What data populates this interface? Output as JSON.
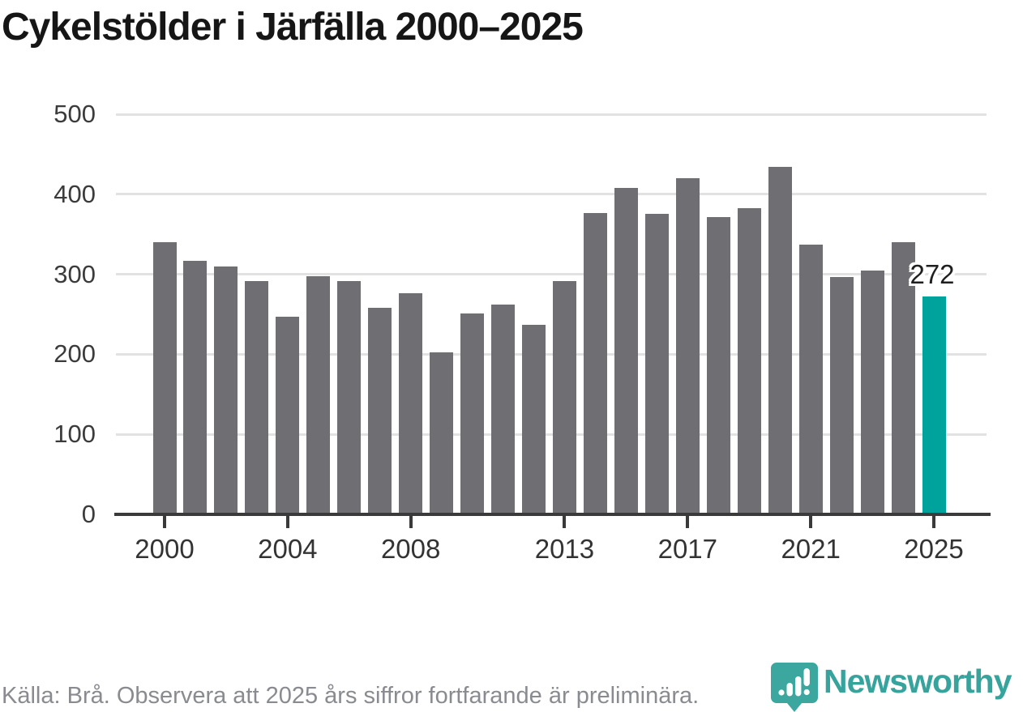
{
  "page_title": "Cykelstölder i Järfälla 2000–2025",
  "chart_data": {
    "type": "bar",
    "title": "Cykelstölder i Järfälla 2000–2025",
    "x": [
      2000,
      2001,
      2002,
      2003,
      2004,
      2005,
      2006,
      2007,
      2008,
      2009,
      2010,
      2011,
      2012,
      2013,
      2014,
      2015,
      2016,
      2017,
      2018,
      2019,
      2020,
      2021,
      2022,
      2023,
      2024,
      2025
    ],
    "values": [
      340,
      317,
      310,
      291,
      247,
      298,
      292,
      258,
      276,
      202,
      251,
      262,
      237,
      291,
      377,
      408,
      376,
      420,
      371,
      383,
      434,
      337,
      297,
      305,
      340,
      272
    ],
    "highlight": {
      "year": 2025,
      "value": 272,
      "label": "272"
    },
    "ylim": [
      0,
      500
    ],
    "yticks": [
      0,
      100,
      200,
      300,
      400,
      500
    ],
    "xticks": [
      2000,
      2004,
      2008,
      2013,
      2017,
      2021,
      2025
    ],
    "grid": true,
    "legend": "none",
    "bar_color": "#6f6e73",
    "highlight_color": "#00a39b",
    "gridline_color": "#e2e2e2",
    "axis_color": "#3a3a3a"
  },
  "footer": {
    "source_text": "Källa: Brå. Observera att 2025 års siffror fortfarande är preliminära.",
    "brand_name": "Newsworthy",
    "brand_color": "#36a39c",
    "brand_icon": "newsworthy-speech-bubble-bar-chart"
  }
}
